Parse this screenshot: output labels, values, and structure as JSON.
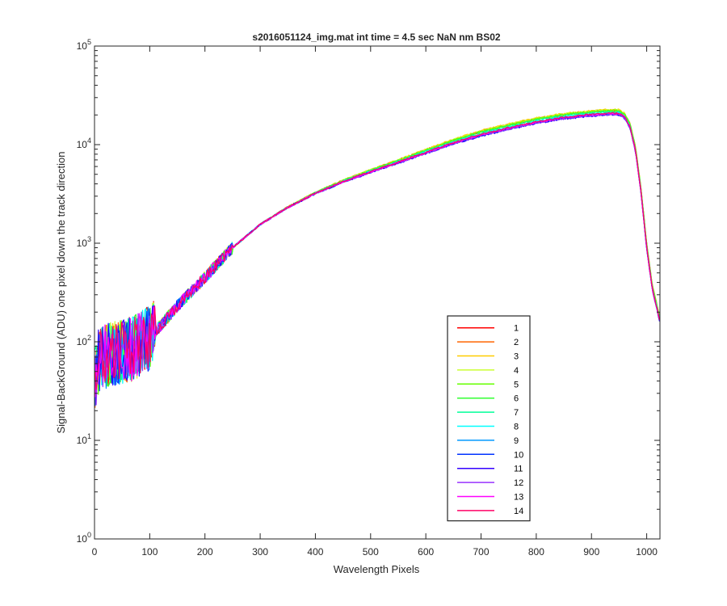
{
  "chart_data": {
    "type": "line",
    "title": "s2016051124_img.mat int time = 4.5 sec  NaN nm BS02",
    "xlabel": "Wavelength Pixels",
    "ylabel": "Signal-BackGround (ADU) one pixel down the track direction",
    "xlim": [
      0,
      1024
    ],
    "ylim": [
      1,
      100000
    ],
    "yscale": "log",
    "grid": false,
    "legend_position": "lower-right",
    "x_ticks": [
      {
        "value": 0,
        "label": "0"
      },
      {
        "value": 100,
        "label": "100"
      },
      {
        "value": 200,
        "label": "200"
      },
      {
        "value": 300,
        "label": "300"
      },
      {
        "value": 400,
        "label": "400"
      },
      {
        "value": 500,
        "label": "500"
      },
      {
        "value": 600,
        "label": "600"
      },
      {
        "value": 700,
        "label": "700"
      },
      {
        "value": 800,
        "label": "800"
      },
      {
        "value": 900,
        "label": "900"
      },
      {
        "value": 1000,
        "label": "1000"
      }
    ],
    "y_ticks": [
      {
        "value": 1,
        "base": "10",
        "exp": "0"
      },
      {
        "value": 10,
        "base": "10",
        "exp": "1"
      },
      {
        "value": 100,
        "base": "10",
        "exp": "2"
      },
      {
        "value": 1000,
        "base": "10",
        "exp": "3"
      },
      {
        "value": 10000,
        "base": "10",
        "exp": "4"
      },
      {
        "value": 100000,
        "base": "10",
        "exp": "5"
      }
    ],
    "x": [
      1,
      5,
      10,
      20,
      30,
      50,
      70,
      100,
      130,
      150,
      200,
      250,
      300,
      350,
      400,
      450,
      500,
      550,
      600,
      650,
      700,
      750,
      800,
      850,
      900,
      930,
      950,
      960,
      970,
      980,
      990,
      1000,
      1010,
      1020,
      1024
    ],
    "base_values": [
      40,
      60,
      65,
      70,
      75,
      80,
      85,
      110,
      170,
      230,
      450,
      900,
      1550,
      2300,
      3200,
      4200,
      5300,
      6600,
      8300,
      10400,
      12600,
      14700,
      16900,
      18800,
      20100,
      20600,
      20600,
      19000,
      15000,
      8500,
      3200,
      900,
      350,
      200,
      160
    ],
    "series": [
      {
        "name": "1",
        "color": "#ff0000",
        "scale": 1.08
      },
      {
        "name": "2",
        "color": "#ff6600",
        "scale": 1.09
      },
      {
        "name": "3",
        "color": "#ffcc00",
        "scale": 1.1
      },
      {
        "name": "4",
        "color": "#ccff33",
        "scale": 1.09
      },
      {
        "name": "5",
        "color": "#66ff00",
        "scale": 1.08
      },
      {
        "name": "6",
        "color": "#33ff33",
        "scale": 1.06
      },
      {
        "name": "7",
        "color": "#00ff99",
        "scale": 1.04
      },
      {
        "name": "8",
        "color": "#00ffff",
        "scale": 1.02
      },
      {
        "name": "9",
        "color": "#0099ff",
        "scale": 1.0
      },
      {
        "name": "10",
        "color": "#0033ff",
        "scale": 0.98
      },
      {
        "name": "11",
        "color": "#3300ff",
        "scale": 0.97
      },
      {
        "name": "12",
        "color": "#9933ff",
        "scale": 0.98
      },
      {
        "name": "13",
        "color": "#ff00ff",
        "scale": 1.0
      },
      {
        "name": "14",
        "color": "#ff0066",
        "scale": 1.01
      }
    ]
  }
}
